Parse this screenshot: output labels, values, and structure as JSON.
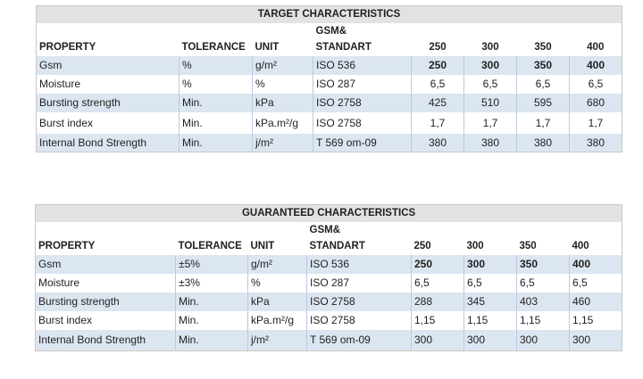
{
  "tables": [
    {
      "title": "TARGET CHARACTERISTICS",
      "header": {
        "property": "PROPERTY",
        "tolerance": "TOLERANCE",
        "unit": "UNIT",
        "gsm_line1": "GSM&",
        "gsm_line2": "STANDART",
        "sizes": [
          "250",
          "300",
          "350",
          "400"
        ]
      },
      "rows": [
        {
          "property": "Gsm",
          "tolerance": "%",
          "unit": "g/m²",
          "standard": "ISO 536",
          "values": [
            "250",
            "300",
            "350",
            "400"
          ]
        },
        {
          "property": "Moisture",
          "tolerance": "%",
          "unit": "%",
          "standard": "ISO 287",
          "values": [
            "6,5",
            "6,5",
            "6,5",
            "6,5"
          ]
        },
        {
          "property": "Bursting strength",
          "tolerance": "Min.",
          "unit": "kPa",
          "standard": "ISO 2758",
          "values": [
            "425",
            "510",
            "595",
            "680"
          ]
        },
        {
          "property": "Burst index",
          "tolerance": "Min.",
          "unit": "kPa.m²/g",
          "standard": "ISO 2758",
          "values": [
            "1,7",
            "1,7",
            "1,7",
            "1,7"
          ]
        },
        {
          "property": "Internal Bond Strength",
          "tolerance": "Min.",
          "unit": "j/m²",
          "standard": "T 569 om-09",
          "values": [
            "380",
            "380",
            "380",
            "380"
          ]
        }
      ]
    },
    {
      "title": "GUARANTEED CHARACTERISTICS",
      "header": {
        "property": "PROPERTY",
        "tolerance": "TOLERANCE",
        "unit": "UNIT",
        "gsm_line1": "GSM&",
        "gsm_line2": "STANDART",
        "sizes": [
          "250",
          "300",
          "350",
          "400"
        ]
      },
      "rows": [
        {
          "property": "Gsm",
          "tolerance": "±5%",
          "unit": "g/m²",
          "standard": "ISO 536",
          "values": [
            "250",
            "300",
            "350",
            "400"
          ]
        },
        {
          "property": "Moisture",
          "tolerance": "±3%",
          "unit": "%",
          "standard": "ISO 287",
          "values": [
            "6,5",
            "6,5",
            "6,5",
            "6,5"
          ]
        },
        {
          "property": "Bursting strength",
          "tolerance": "Min.",
          "unit": "kPa",
          "standard": "ISO 2758",
          "values": [
            "288",
            "345",
            "403",
            "460"
          ]
        },
        {
          "property": "Burst index",
          "tolerance": "Min.",
          "unit": "kPa.m²/g",
          "standard": "ISO 2758",
          "values": [
            "1,15",
            "1,15",
            "1,15",
            "1,15"
          ]
        },
        {
          "property": "Internal Bond Strength",
          "tolerance": "Min.",
          "unit": "j/m²",
          "standard": "T 569 om-09",
          "values": [
            "300",
            "300",
            "300",
            "300"
          ]
        }
      ]
    }
  ]
}
